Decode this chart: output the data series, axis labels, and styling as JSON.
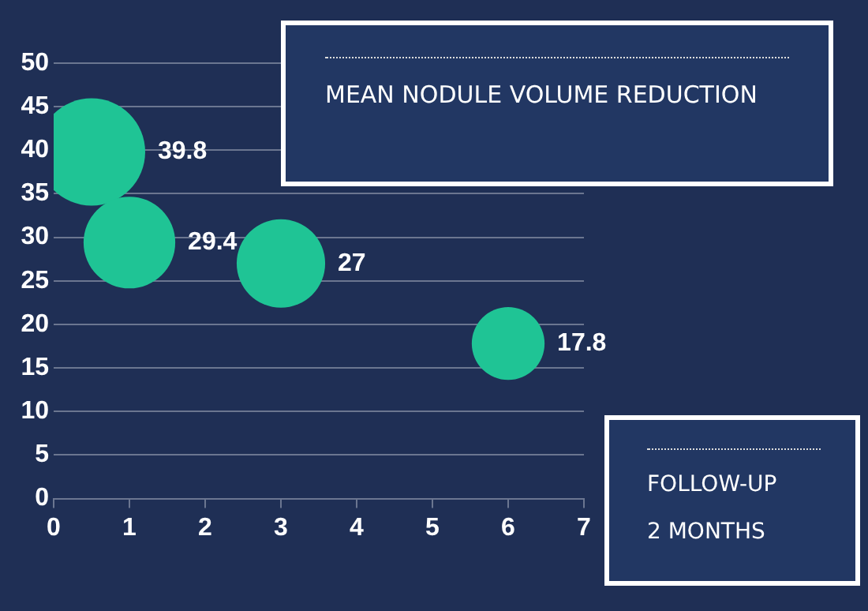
{
  "chart_data": {
    "type": "bubble",
    "title": "MEAN NODULE VOLUME REDUCTION",
    "annotations": [
      "FOLLOW-UP",
      "2 MONTHS"
    ],
    "x": [
      0.5,
      1,
      3,
      6
    ],
    "series": [
      {
        "color": "#1fc495",
        "values": [
          39.8,
          29.4,
          27,
          17.8
        ],
        "sizes": [
          1,
          0.73,
          0.68,
          0.46
        ]
      }
    ],
    "xlim": [
      0,
      7
    ],
    "xticks": [
      0,
      1,
      2,
      3,
      4,
      5,
      6,
      7
    ],
    "ylim": [
      0,
      50
    ],
    "yticks": [
      0,
      5,
      10,
      15,
      20,
      25,
      30,
      35,
      40,
      45,
      50
    ],
    "grid": "y",
    "legend": false,
    "data_labels": true
  }
}
